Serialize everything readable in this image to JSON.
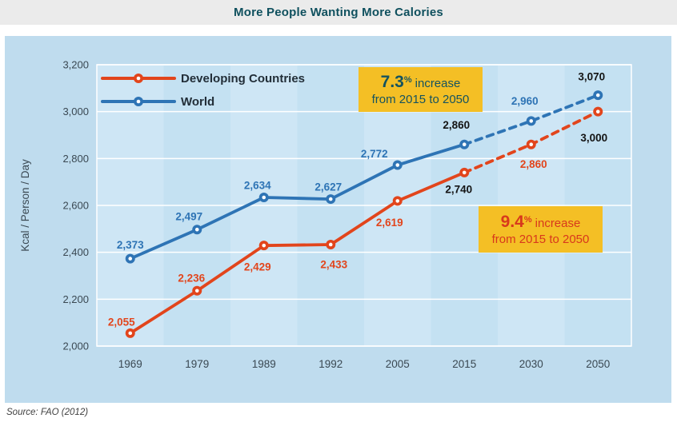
{
  "title": "More People Wanting More Calories",
  "source_note": "Source: FAO (2012)",
  "colors": {
    "title_text": "#0F505E",
    "title_bar_bg": "#EBEBEB",
    "panel_bg": "#BFDCEE",
    "band_light": "#CEE6F5",
    "band_dark": "#C4E1F2",
    "gridline": "#FFFFFF",
    "developing_red": "#E2451C",
    "world_blue": "#2E74B5",
    "annotation_bg": "#F4BF25",
    "black_label": "#141414",
    "axis_text": "#3A4852",
    "legend_text": "#222E38"
  },
  "chart_data": {
    "type": "line",
    "title": "More People Wanting More Calories",
    "categories": [
      "1969",
      "1979",
      "1989",
      "1992",
      "2005",
      "2015",
      "2030",
      "2050"
    ],
    "xlabel": "",
    "ylabel": "Kcal / Person / Day",
    "ylim": [
      2000,
      3200
    ],
    "ytick_interval": 200,
    "ytick_labels": [
      "2,000",
      "2,200",
      "2,400",
      "2,600",
      "2,800",
      "3,000",
      "3,200"
    ],
    "grid": "horizontal white gridlines, vertical alternating light-blue bands",
    "legend_position": "top-left inside plot",
    "dashed_from_category": "2015",
    "dashed_meaning": "projection from 2015 to 2050",
    "series": [
      {
        "name": "Developing Countries",
        "color": "#E2451C",
        "values": [
          2055,
          2236,
          2429,
          2433,
          2619,
          2740,
          2860,
          3000
        ],
        "point_labels": [
          "2,055",
          "2,236",
          "2,429",
          "2,433",
          "2,619",
          "2,740",
          "2,860",
          "3,000"
        ],
        "label_colors": [
          "series",
          "series",
          "series",
          "series",
          "series",
          "black",
          "series",
          "black"
        ]
      },
      {
        "name": "World",
        "color": "#2E74B5",
        "values": [
          2373,
          2497,
          2634,
          2627,
          2772,
          2860,
          2960,
          3070
        ],
        "point_labels": [
          "2,373",
          "2,497",
          "2,634",
          "2,627",
          "2,772",
          "2,860",
          "2,960",
          "3,070"
        ],
        "label_colors": [
          "series",
          "series",
          "series",
          "series",
          "series",
          "black",
          "series",
          "black"
        ]
      }
    ],
    "annotations": [
      {
        "value": "7.3",
        "pct_sign": "%",
        "suffix": "increase",
        "line2": "from 2015 to 2050",
        "refers_to": "World",
        "text_color": "#15535F",
        "bg": "#F4BF25"
      },
      {
        "value": "9.4",
        "pct_sign": "%",
        "suffix": "increase",
        "line2": "from 2015 to 2050",
        "refers_to": "Developing Countries",
        "text_color": "#D8381C",
        "bg": "#F4BF25"
      }
    ]
  }
}
